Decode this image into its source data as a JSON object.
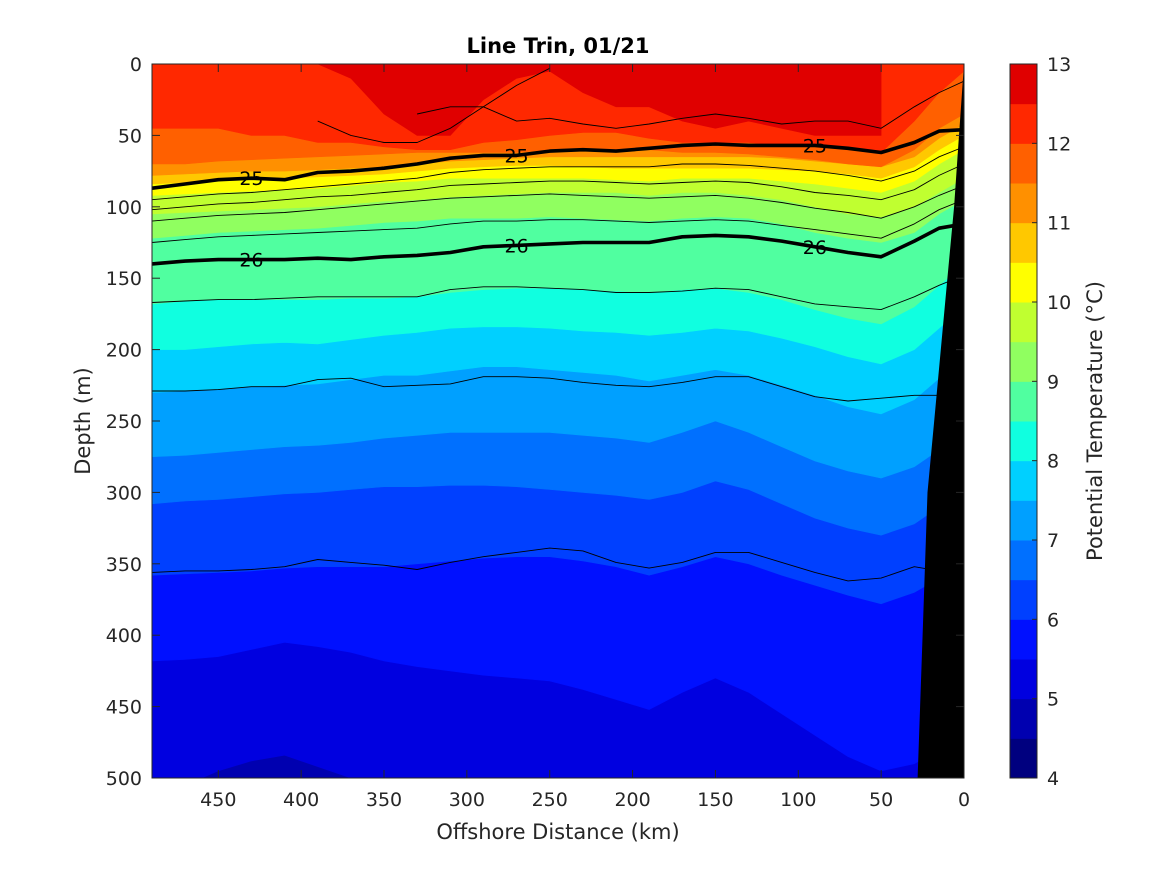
{
  "chart_data": {
    "type": "heatmap",
    "subtype": "filled-contour-section",
    "title": "Line Trin, 01/21",
    "xlabel": "Offshore Distance (km)",
    "ylabel": "Depth (m)",
    "colorbar_label": "Potential Temperature (°C)",
    "xlim": [
      490,
      0
    ],
    "x_reversed": true,
    "ylim": [
      0,
      500
    ],
    "y_reversed": true,
    "x_ticks": [
      450,
      400,
      350,
      300,
      250,
      200,
      150,
      100,
      50,
      0
    ],
    "y_ticks": [
      0,
      50,
      100,
      150,
      200,
      250,
      300,
      350,
      400,
      450,
      500
    ],
    "colorbar_ticks": [
      4,
      5,
      6,
      7,
      8,
      9,
      10,
      11,
      12,
      13
    ],
    "colorbar_range": [
      4,
      13
    ],
    "contour_levels_step": 0.5,
    "x_samples": [
      490,
      470,
      450,
      430,
      410,
      390,
      370,
      350,
      330,
      310,
      290,
      270,
      250,
      230,
      210,
      190,
      170,
      150,
      130,
      110,
      90,
      70,
      50,
      30,
      15,
      0
    ],
    "isotherms": [
      {
        "temp": 12.5,
        "depth": [
          null,
          null,
          null,
          null,
          null,
          0,
          10,
          35,
          50,
          50,
          25,
          10,
          5,
          20,
          30,
          30,
          40,
          45,
          40,
          45,
          50,
          50,
          50,
          null,
          null,
          null
        ]
      },
      {
        "temp": 12.0,
        "depth": [
          45,
          45,
          45,
          50,
          50,
          55,
          55,
          58,
          60,
          60,
          55,
          53,
          50,
          48,
          48,
          52,
          55,
          55,
          55,
          57,
          57,
          60,
          62,
          40,
          20,
          5
        ]
      },
      {
        "temp": 11.5,
        "depth": [
          70,
          70,
          68,
          67,
          66,
          65,
          64,
          63,
          62,
          62,
          62,
          62,
          60,
          60,
          60,
          60,
          62,
          62,
          63,
          65,
          67,
          70,
          72,
          60,
          45,
          35
        ]
      },
      {
        "temp": 11.0,
        "depth": [
          78,
          77,
          76,
          75,
          75,
          74,
          73,
          72,
          70,
          68,
          67,
          66,
          65,
          65,
          65,
          65,
          65,
          65,
          65,
          66,
          68,
          70,
          72,
          65,
          52,
          42
        ]
      },
      {
        "temp": 10.5,
        "depth": [
          84,
          83,
          82,
          81,
          80,
          79,
          78,
          77,
          75,
          73,
          72,
          71,
          71,
          72,
          73,
          73,
          73,
          73,
          73,
          74,
          75,
          77,
          80,
          72,
          60,
          50
        ]
      },
      {
        "temp": 10.0,
        "depth": [
          92,
          91,
          90,
          89,
          88,
          87,
          85,
          83,
          82,
          80,
          80,
          80,
          80,
          80,
          81,
          82,
          80,
          80,
          80,
          82,
          84,
          87,
          90,
          82,
          70,
          60
        ]
      },
      {
        "temp": 9.5,
        "depth": [
          105,
          104,
          103,
          102,
          101,
          100,
          98,
          96,
          95,
          93,
          92,
          91,
          90,
          90,
          90,
          92,
          90,
          90,
          92,
          95,
          100,
          105,
          107,
          100,
          90,
          80
        ]
      },
      {
        "temp": 9.0,
        "depth": [
          122,
          120,
          118,
          117,
          116,
          115,
          113,
          111,
          110,
          108,
          108,
          108,
          107,
          108,
          109,
          110,
          108,
          107,
          108,
          112,
          118,
          122,
          125,
          118,
          105,
          95
        ]
      },
      {
        "temp": 8.5,
        "depth": [
          168,
          166,
          165,
          165,
          165,
          165,
          164,
          164,
          163,
          160,
          158,
          157,
          157,
          158,
          159,
          160,
          158,
          157,
          160,
          165,
          172,
          178,
          182,
          170,
          155,
          140
        ]
      },
      {
        "temp": 8.0,
        "depth": [
          200,
          200,
          198,
          196,
          195,
          196,
          193,
          190,
          188,
          185,
          184,
          184,
          185,
          187,
          188,
          190,
          188,
          185,
          187,
          192,
          198,
          205,
          210,
          200,
          185,
          170
        ]
      },
      {
        "temp": 7.5,
        "depth": [
          230,
          229,
          228,
          226,
          225,
          224,
          221,
          218,
          218,
          215,
          212,
          212,
          214,
          216,
          218,
          222,
          218,
          214,
          218,
          225,
          232,
          240,
          245,
          235,
          220,
          205
        ]
      },
      {
        "temp": 7.0,
        "depth": [
          275,
          274,
          272,
          270,
          268,
          267,
          265,
          262,
          260,
          258,
          258,
          258,
          258,
          260,
          262,
          265,
          258,
          250,
          258,
          268,
          278,
          285,
          290,
          282,
          270,
          260
        ]
      },
      {
        "temp": 6.5,
        "depth": [
          308,
          306,
          305,
          303,
          301,
          300,
          298,
          296,
          296,
          295,
          295,
          296,
          298,
          300,
          302,
          305,
          300,
          292,
          298,
          308,
          318,
          325,
          330,
          322,
          310,
          300
        ]
      },
      {
        "temp": 6.0,
        "depth": [
          358,
          357,
          356,
          355,
          353,
          352,
          352,
          352,
          350,
          348,
          346,
          345,
          345,
          348,
          352,
          358,
          352,
          345,
          350,
          358,
          365,
          372,
          378,
          370,
          360,
          350
        ]
      },
      {
        "temp": 5.5,
        "depth": [
          418,
          417,
          415,
          410,
          405,
          408,
          412,
          418,
          422,
          425,
          428,
          430,
          432,
          438,
          445,
          452,
          440,
          430,
          440,
          455,
          470,
          485,
          495,
          490,
          480,
          470
        ]
      },
      {
        "temp": 5.0,
        "depth": [
          510,
          505,
          495,
          488,
          484,
          492,
          500,
          510,
          515,
          515,
          520,
          520,
          525,
          525,
          525,
          525,
          525,
          525,
          525,
          525,
          525,
          525,
          525,
          525,
          525,
          525
        ]
      }
    ],
    "density_contours": [
      {
        "sigma": 24.5,
        "label": "",
        "width": "thin",
        "depth": [
          null,
          null,
          null,
          null,
          null,
          40,
          50,
          55,
          55,
          45,
          30,
          15,
          3,
          null,
          null,
          null,
          null,
          null,
          null,
          null,
          null,
          null,
          null,
          null,
          null,
          null
        ]
      },
      {
        "sigma": 24.8,
        "label": "",
        "width": "thin",
        "depth": [
          null,
          null,
          null,
          null,
          null,
          null,
          null,
          null,
          35,
          30,
          30,
          40,
          38,
          42,
          45,
          42,
          38,
          35,
          38,
          42,
          40,
          40,
          45,
          30,
          20,
          12
        ]
      },
      {
        "sigma": 25.0,
        "label": "25",
        "width": "thick",
        "depth": [
          87,
          84,
          81,
          80,
          81,
          76,
          75,
          73,
          70,
          66,
          64,
          64,
          61,
          60,
          61,
          59,
          57,
          56,
          57,
          57,
          57,
          59,
          62,
          55,
          47,
          46
        ]
      },
      {
        "sigma": 25.2,
        "label": "",
        "width": "thin",
        "depth": [
          95,
          93,
          91,
          90,
          88,
          86,
          84,
          82,
          80,
          76,
          74,
          73,
          72,
          72,
          72,
          72,
          70,
          70,
          71,
          73,
          75,
          78,
          82,
          75,
          65,
          58
        ]
      },
      {
        "sigma": 25.4,
        "label": "",
        "width": "thin",
        "depth": [
          102,
          100,
          98,
          97,
          95,
          93,
          92,
          90,
          88,
          85,
          84,
          83,
          82,
          82,
          83,
          84,
          83,
          82,
          83,
          86,
          90,
          92,
          95,
          88,
          78,
          70
        ]
      },
      {
        "sigma": 25.6,
        "label": "",
        "width": "thin",
        "depth": [
          110,
          108,
          106,
          105,
          104,
          102,
          100,
          98,
          96,
          94,
          93,
          92,
          91,
          92,
          93,
          94,
          93,
          92,
          94,
          97,
          101,
          104,
          108,
          100,
          92,
          85
        ]
      },
      {
        "sigma": 25.8,
        "label": "",
        "width": "thin",
        "depth": [
          125,
          123,
          121,
          120,
          119,
          118,
          117,
          116,
          115,
          112,
          110,
          110,
          109,
          109,
          110,
          111,
          110,
          109,
          110,
          113,
          116,
          119,
          122,
          112,
          102,
          95
        ]
      },
      {
        "sigma": 26.0,
        "label": "26",
        "width": "thick",
        "depth": [
          140,
          138,
          137,
          137,
          137,
          136,
          137,
          135,
          134,
          132,
          128,
          127,
          126,
          125,
          125,
          125,
          121,
          120,
          121,
          124,
          128,
          132,
          135,
          124,
          115,
          112
        ]
      },
      {
        "sigma": 26.3,
        "label": "",
        "width": "thin",
        "depth": [
          167,
          166,
          165,
          165,
          164,
          163,
          163,
          163,
          163,
          158,
          156,
          156,
          157,
          158,
          160,
          160,
          159,
          157,
          158,
          163,
          168,
          170,
          172,
          163,
          155,
          148
        ]
      },
      {
        "sigma": 26.5,
        "label": "",
        "width": "thin",
        "depth": [
          229,
          229,
          228,
          226,
          226,
          221,
          220,
          226,
          225,
          224,
          219,
          219,
          220,
          223,
          225,
          226,
          223,
          219,
          219,
          226,
          233,
          236,
          234,
          232,
          232,
          230
        ]
      },
      {
        "sigma": 26.7,
        "label": "",
        "width": "thin",
        "depth": [
          356,
          355,
          355,
          354,
          352,
          347,
          349,
          351,
          354,
          349,
          345,
          342,
          339,
          341,
          349,
          353,
          349,
          342,
          342,
          349,
          356,
          362,
          360,
          352,
          355,
          356
        ]
      }
    ],
    "bottom_topography": {
      "x": [
        28,
        25,
        22,
        18,
        14,
        10,
        6,
        3,
        0
      ],
      "depth": [
        500,
        400,
        300,
        250,
        200,
        150,
        100,
        50,
        0
      ]
    }
  },
  "colors": {
    "colormap_jet": [
      {
        "t": 4.0,
        "color": "#00007f"
      },
      {
        "t": 4.5,
        "color": "#0000b0"
      },
      {
        "t": 5.0,
        "color": "#0000e0"
      },
      {
        "t": 5.5,
        "color": "#0010ff"
      },
      {
        "t": 6.0,
        "color": "#0040ff"
      },
      {
        "t": 6.5,
        "color": "#0070ff"
      },
      {
        "t": 7.0,
        "color": "#00a0ff"
      },
      {
        "t": 7.5,
        "color": "#00d0ff"
      },
      {
        "t": 8.0,
        "color": "#10ffe0"
      },
      {
        "t": 8.5,
        "color": "#50ffa0"
      },
      {
        "t": 9.0,
        "color": "#90ff60"
      },
      {
        "t": 9.5,
        "color": "#c0ff30"
      },
      {
        "t": 10.0,
        "color": "#ffff00"
      },
      {
        "t": 10.5,
        "color": "#ffc800"
      },
      {
        "t": 11.0,
        "color": "#ff9000"
      },
      {
        "t": 11.5,
        "color": "#ff6000"
      },
      {
        "t": 12.0,
        "color": "#ff2800"
      },
      {
        "t": 12.5,
        "color": "#e00000"
      },
      {
        "t": 13.0,
        "color": "#a00000"
      }
    ],
    "land": "#000000",
    "axis": "#262626"
  }
}
